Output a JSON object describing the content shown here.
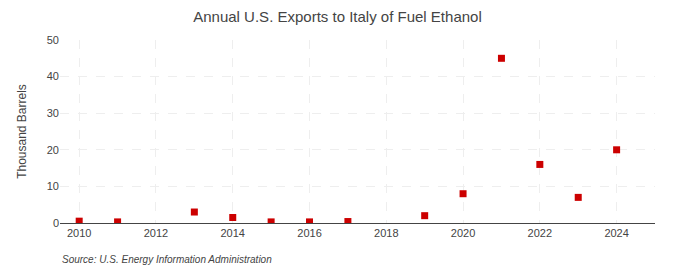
{
  "chart_data": {
    "type": "scatter",
    "title": "Annual U.S. Exports to Italy of Fuel Ethanol",
    "ylabel": "Thousand Barrels",
    "source": "Source: U.S. Energy Information Administration",
    "x": [
      2010,
      2011,
      2013,
      2014,
      2015,
      2016,
      2017,
      2019,
      2020,
      2021,
      2022,
      2023,
      2024
    ],
    "values": [
      0.5,
      0.3,
      3,
      1.5,
      0.3,
      0.3,
      0.4,
      2,
      8,
      45,
      16,
      7,
      20
    ],
    "color": "#cc0000",
    "marker": "square",
    "xlim": [
      2009.5,
      2025.0
    ],
    "ylim": [
      0,
      50
    ],
    "xticks": [
      2010,
      2012,
      2014,
      2016,
      2018,
      2020,
      2022,
      2024
    ],
    "yticks": [
      0,
      10,
      20,
      30,
      40,
      50
    ],
    "grid": true
  }
}
